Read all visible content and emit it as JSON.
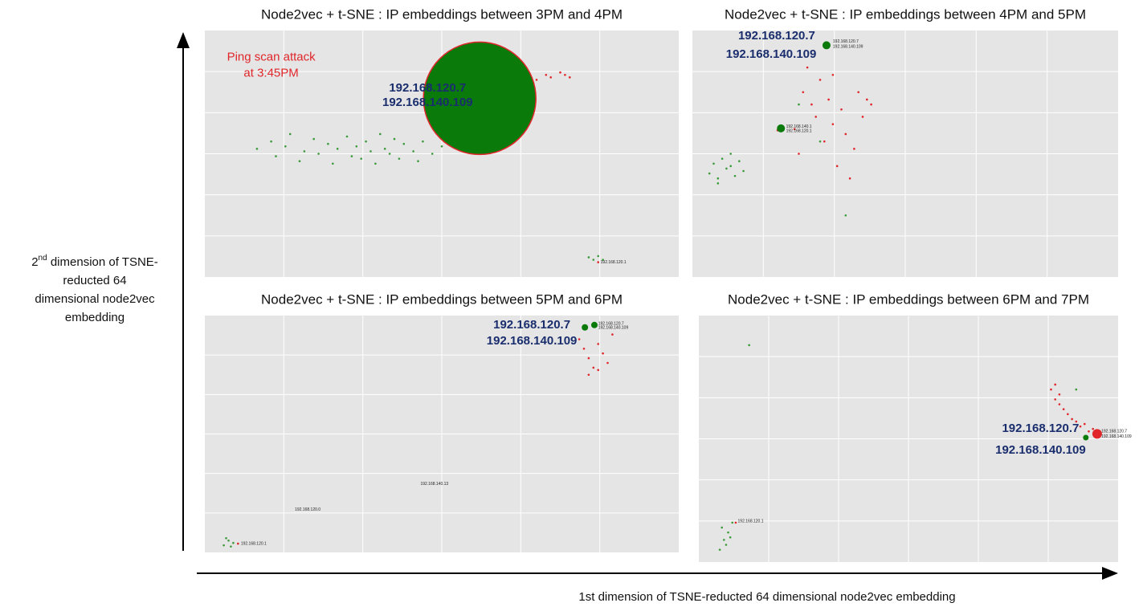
{
  "chart_data": [
    {
      "type": "scatter",
      "title": "Node2vec + t-SNE : IP embeddings between 3PM and 4PM",
      "xlim": [
        0,
        100
      ],
      "ylim": [
        0,
        100
      ],
      "grid": true,
      "series": [
        {
          "color": "#3a9a3a",
          "size": 1.3,
          "x": [
            11,
            14,
            15,
            17,
            18,
            20,
            21,
            23,
            24,
            26,
            27,
            28,
            30,
            31,
            32,
            33,
            34,
            35,
            36,
            37,
            38,
            39,
            40,
            41,
            42,
            44,
            45,
            46,
            48,
            50,
            81,
            82,
            83,
            84
          ],
          "y": [
            52,
            55,
            49,
            53,
            58,
            47,
            51,
            56,
            50,
            54,
            46,
            52,
            57,
            49,
            53,
            48,
            55,
            51,
            46,
            58,
            52,
            50,
            56,
            48,
            54,
            51,
            47,
            55,
            50,
            53,
            8,
            7,
            8.5,
            7
          ]
        },
        {
          "color": "#e0262a",
          "size": 1.3,
          "x": [
            54,
            56,
            58,
            59,
            61,
            62,
            64,
            65,
            67,
            70,
            72,
            73,
            75,
            76,
            77,
            83
          ],
          "y": [
            83,
            81,
            84,
            80,
            82,
            85,
            79,
            83,
            81,
            80,
            82,
            81,
            83,
            82,
            81,
            6
          ]
        },
        {
          "color": "#0a7a0a",
          "size": 70,
          "x": [
            58
          ],
          "y": [
            72.5
          ]
        }
      ],
      "annotations": [
        {
          "text": "Ping scan attack",
          "x": 14,
          "y": 89,
          "style": "red"
        },
        {
          "text": "at 3:45PM",
          "x": 14,
          "y": 82.5,
          "style": "red"
        },
        {
          "text": "192.168.120.7",
          "x": 47,
          "y": 76.5,
          "style": "blue"
        },
        {
          "text": "192.168.140.109",
          "x": 47,
          "y": 70.7,
          "style": "blue"
        },
        {
          "text": "192.168.120.1",
          "x": 83.5,
          "y": 6,
          "style": "small"
        }
      ]
    },
    {
      "type": "scatter",
      "title": "Node2vec + t-SNE : IP embeddings between 4PM and 5PM",
      "xlim": [
        0,
        100
      ],
      "ylim": [
        0,
        100
      ],
      "grid": true,
      "series": [
        {
          "color": "#3a9a3a",
          "size": 1.3,
          "x": [
            4,
            5,
            6,
            7,
            8,
            9,
            10,
            11,
            12,
            6,
            9,
            25,
            30,
            36
          ],
          "y": [
            42,
            46,
            40,
            48,
            44,
            50,
            41,
            47,
            43,
            38,
            45,
            70,
            55,
            25
          ]
        },
        {
          "color": "#e0262a",
          "size": 1.3,
          "x": [
            24,
            26,
            27,
            28,
            29,
            30,
            31,
            32,
            33,
            34,
            35,
            36,
            38,
            39,
            40,
            41,
            42,
            25,
            37,
            33,
            20
          ],
          "y": [
            60,
            75,
            85,
            70,
            65,
            80,
            55,
            72,
            62,
            45,
            68,
            58,
            52,
            75,
            65,
            72,
            70,
            50,
            40,
            82,
            59.5
          ]
        },
        {
          "color": "#0a7a0a",
          "size": 5,
          "x": [
            31.5,
            20.8
          ],
          "y": [
            94,
            60.3
          ]
        }
      ],
      "annotations": [
        {
          "text": "192.168.120.7",
          "x": 19.8,
          "y": 97.7,
          "style": "blue"
        },
        {
          "text": "192.168.140.109",
          "x": 18.5,
          "y": 90.2,
          "style": "blue"
        },
        {
          "text": "192.168.120.7",
          "x": 33,
          "y": 95.5,
          "style": "small"
        },
        {
          "text": "192.168.140.109",
          "x": 33,
          "y": 93.5,
          "style": "small"
        },
        {
          "text": "192.168.140.1",
          "x": 22,
          "y": 61,
          "style": "small"
        },
        {
          "text": "192.168.120.1",
          "x": 22,
          "y": 59.3,
          "style": "small"
        }
      ]
    },
    {
      "type": "scatter",
      "title": "Node2vec + t-SNE : IP embeddings between 5PM and 6PM",
      "xlim": [
        0,
        100
      ],
      "ylim": [
        0,
        100
      ],
      "grid": true,
      "series": [
        {
          "color": "#3a9a3a",
          "size": 1.3,
          "x": [
            4,
            5,
            6,
            4.5,
            5.5
          ],
          "y": [
            3,
            5,
            4,
            6,
            2.5
          ]
        },
        {
          "color": "#e0262a",
          "size": 1.3,
          "x": [
            79,
            80,
            81,
            82,
            83,
            84,
            85,
            86,
            81,
            83,
            7
          ],
          "y": [
            90,
            86,
            82,
            78,
            88,
            84,
            80,
            92,
            75,
            77,
            3.7
          ]
        },
        {
          "color": "#0a7a0a",
          "size": 4,
          "x": [
            80.2,
            82.2
          ],
          "y": [
            95,
            96
          ]
        }
      ],
      "annotations": [
        {
          "text": "192.168.120.7",
          "x": 69,
          "y": 96,
          "style": "blue"
        },
        {
          "text": "192.168.140.109",
          "x": 69,
          "y": 89.2,
          "style": "blue"
        },
        {
          "text": "192.168.120.7",
          "x": 83,
          "y": 96.5,
          "style": "small"
        },
        {
          "text": "192.168.140.109",
          "x": 83,
          "y": 94.8,
          "style": "small"
        },
        {
          "text": "192.168.140.13",
          "x": 45.5,
          "y": 29,
          "style": "small"
        },
        {
          "text": "192.168.120.0",
          "x": 19,
          "y": 18,
          "style": "small"
        },
        {
          "text": "192.168.120.1",
          "x": 7.6,
          "y": 3.7,
          "style": "small"
        }
      ]
    },
    {
      "type": "scatter",
      "title": "Node2vec + t-SNE : IP embeddings between 6PM and 7PM",
      "xlim": [
        0,
        100
      ],
      "ylim": [
        0,
        100
      ],
      "grid": true,
      "series": [
        {
          "color": "#3a9a3a",
          "size": 1.3,
          "x": [
            5,
            6,
            7,
            8,
            6.5,
            5.5,
            7.5,
            90,
            12
          ],
          "y": [
            5,
            9,
            12,
            16,
            7,
            14,
            10,
            70,
            88
          ]
        },
        {
          "color": "#e0262a",
          "size": 1.3,
          "x": [
            84,
            85,
            86,
            87,
            88,
            89,
            90,
            91,
            92,
            93,
            94,
            85,
            86,
            8.8
          ],
          "y": [
            70,
            66,
            64,
            62,
            60,
            58,
            57,
            55,
            56,
            53,
            54,
            72,
            68,
            16
          ]
        },
        {
          "color": "#e0262a",
          "size": 6,
          "x": [
            95
          ],
          "y": [
            52
          ]
        },
        {
          "color": "#0a7a0a",
          "size": 3.5,
          "x": [
            92.3
          ],
          "y": [
            50.5
          ]
        }
      ],
      "annotations": [
        {
          "text": "192.168.120.7",
          "x": 81.5,
          "y": 54,
          "style": "blue"
        },
        {
          "text": "192.168.140.109",
          "x": 81.5,
          "y": 45.3,
          "style": "blue"
        },
        {
          "text": "192.168.120.7",
          "x": 96,
          "y": 53,
          "style": "small"
        },
        {
          "text": "192.168.140.109",
          "x": 96,
          "y": 51,
          "style": "small"
        },
        {
          "text": "192.168.120.1",
          "x": 9.3,
          "y": 16.6,
          "style": "small"
        }
      ]
    }
  ],
  "y_label": {
    "ordinal": "2",
    "ordinal_suffix": "nd",
    "lines": [
      " dimension of TSNE-",
      "reducted 64",
      "dimensional node2vec",
      "embedding"
    ]
  },
  "x_label": "1st dimension of TSNE-reducted 64 dimensional node2vec embedding"
}
